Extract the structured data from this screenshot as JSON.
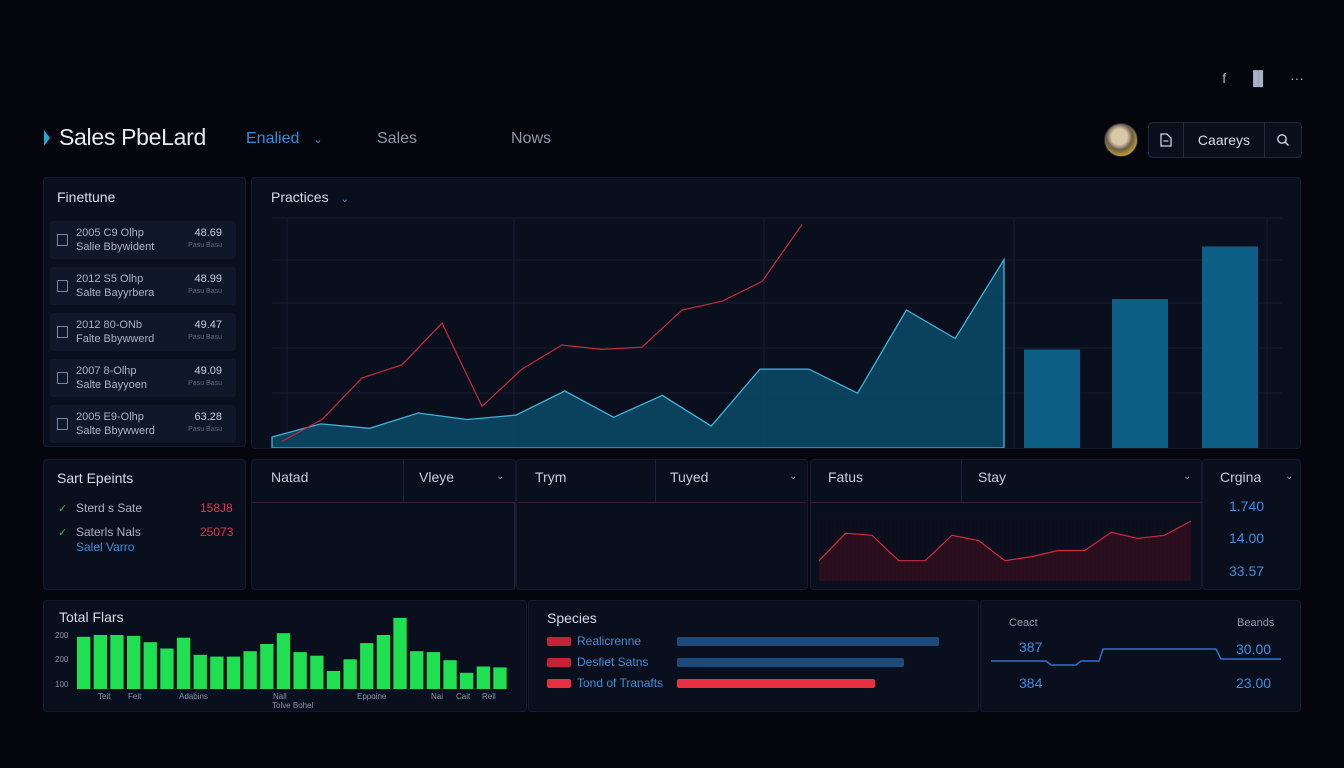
{
  "header": {
    "top_icons": [
      "f",
      "▐▌",
      "···"
    ],
    "brand": "Sales PbeLard",
    "nav": [
      {
        "label": "Enalied",
        "active": true
      },
      {
        "label": "Sales",
        "active": false
      },
      {
        "label": "Nows",
        "active": false
      }
    ],
    "toolbox_label": "Caareys",
    "icons": [
      "document-icon",
      "search-icon"
    ]
  },
  "finetune": {
    "title": "Finettune",
    "items": [
      {
        "line1": "2005 C9 Olhp",
        "line2": "Salie Bbywident",
        "value": "48.69",
        "sub": "Pasu Basu"
      },
      {
        "line1": "2012 S5 Olhp",
        "line2": "Salte Bayyrbera",
        "value": "48.99",
        "sub": "Pasu Basu"
      },
      {
        "line1": "2012 80-ONb",
        "line2": "Falte Bbywwerd",
        "value": "49.47",
        "sub": "Pasu Basu"
      },
      {
        "line1": "2007 8-Olhp",
        "line2": "Salte Bayyoen",
        "value": "49.09",
        "sub": "Pasu Basu"
      },
      {
        "line1": "2005 E9-Olhp",
        "line2": "Salte Bbywwerd",
        "value": "63.28",
        "sub": "Pasu Basu"
      }
    ]
  },
  "practices": {
    "title": "Practices"
  },
  "chart_data": {
    "type": "area",
    "series": [
      {
        "values": [
          0.5,
          1.1,
          0.9,
          1.6,
          1.3,
          1.5,
          2.6,
          1.4,
          2.4,
          1.0,
          3.6,
          3.6,
          2.5,
          6.3,
          5.0,
          8.6
        ]
      },
      {
        "values": [
          0.3,
          1.3,
          3.2,
          3.8,
          5.7,
          1.9,
          3.6,
          4.7,
          4.5,
          4.6,
          6.3,
          6.7,
          7.6,
          10.2
        ]
      }
    ],
    "bars": [
      4.5,
      6.8,
      9.2
    ]
  },
  "tables": {
    "col1a": "Natad",
    "col1b": "Vleye",
    "col2a": "Trym",
    "col2b": "Tuyed",
    "col3a": "Fatus",
    "col3b": "Stay",
    "col4": "Crgina"
  },
  "sparkline": {
    "values": [
      2.0,
      4.7,
      4.5,
      2.0,
      2.0,
      4.5,
      4.0,
      2.0,
      2.4,
      3.0,
      3.0,
      4.8,
      4.2,
      4.5,
      5.9
    ]
  },
  "kpis": [
    "1.740",
    "14.00",
    "33.57"
  ],
  "events": {
    "title": "Sart Epeints",
    "items": [
      {
        "text": "Sterd s Sate",
        "value": "158J8"
      },
      {
        "text": "Saterls Nals",
        "sub": "Salel Varro",
        "value": "25073"
      }
    ]
  },
  "total": {
    "title": "Total Flars",
    "yticks": [
      "200",
      "200",
      "100"
    ],
    "xlabels": [
      "Teit",
      "Feit",
      "Adabins",
      "Nall",
      "Tolve Bohel",
      "Eppoine",
      "Nai",
      "Cait",
      "Rell"
    ],
    "bar_color": "#1fe050",
    "values": [
      58,
      60,
      60,
      59,
      52,
      45,
      57,
      38,
      36,
      36,
      42,
      50,
      62,
      41,
      37,
      20,
      33,
      51,
      60,
      79,
      42,
      41,
      32,
      18,
      25,
      24
    ]
  },
  "species": {
    "title": "Species",
    "items": [
      {
        "label": "Realicrenne",
        "color": "#c52236",
        "bar_color": "#1c4a7a",
        "fill": 0.82
      },
      {
        "label": "Desfiet Satns",
        "color": "#c52236",
        "bar_color": "#1c4a7a",
        "fill": 0.71
      },
      {
        "label": "Tond of Tranafts",
        "color": "#e83040",
        "bar_color": "#e83040",
        "fill": 0.62
      }
    ]
  },
  "right_panel": {
    "left_label": "Ceact",
    "right_label": "Beands",
    "values_left": [
      "387",
      "384"
    ],
    "values_right": [
      "30.00",
      "23.00"
    ]
  }
}
